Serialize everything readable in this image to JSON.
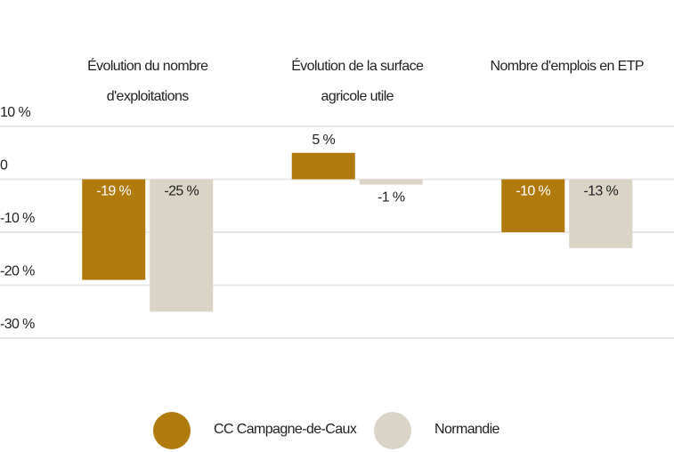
{
  "chart_data": {
    "type": "bar",
    "categories": [
      "Évolution du nombre d'exploitations",
      "Évolution de la surface agricole utile",
      "Nombre d'emplois en ETP"
    ],
    "series": [
      {
        "name": "CC Campagne-de-Caux",
        "color": "#b07a0c",
        "values": [
          -19,
          5,
          -10
        ],
        "value_labels": [
          "-19 %",
          "5 %",
          "-10 %"
        ]
      },
      {
        "name": "Normandie",
        "color": "#d9d4c6",
        "values": [
          -25,
          -1,
          -13
        ],
        "value_labels": [
          "-25 %",
          "-1 %",
          "-13 %"
        ]
      }
    ],
    "ylim": [
      -30,
      10
    ],
    "yticks": [
      {
        "value": 10,
        "label": "10 %"
      },
      0,
      {
        "value": -10,
        "label": "-10 %"
      },
      {
        "value": -20,
        "label": "-20 %"
      },
      {
        "value": -30,
        "label": "-30 %"
      }
    ],
    "grid": true,
    "legend": "bottom"
  }
}
